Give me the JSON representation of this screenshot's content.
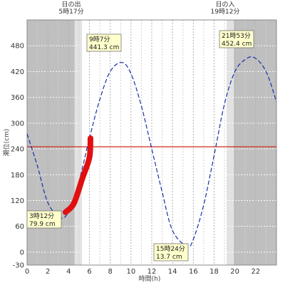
{
  "chart_data": {
    "type": "line",
    "xlabel": "時間(h)",
    "ylabel": "潮位(cm)",
    "xlim": [
      0,
      24
    ],
    "ylim": [
      -30,
      540
    ],
    "x_ticks": [
      0,
      2,
      4,
      6,
      8,
      10,
      12,
      14,
      16,
      18,
      20,
      22
    ],
    "y_ticks": [
      -30,
      0,
      60,
      120,
      180,
      240,
      300,
      360,
      420,
      480
    ],
    "grid": true,
    "sunrise": {
      "label": "日の出",
      "time": "5時17分",
      "hour": 5.283
    },
    "sunset": {
      "label": "日の入",
      "time": "19時12分",
      "hour": 19.2
    },
    "reference_level": 245,
    "extrema": [
      {
        "time": "3時12分",
        "height": "79.9 cm",
        "hour": 3.2,
        "value": 79.9
      },
      {
        "time": "9時7分",
        "height": "441.3 cm",
        "hour": 9.117,
        "value": 441.3
      },
      {
        "time": "15時24分",
        "height": "13.7 cm",
        "hour": 15.4,
        "value": 13.7
      },
      {
        "time": "21時53分",
        "height": "452.4 cm",
        "hour": 21.883,
        "value": 452.4
      }
    ],
    "series": [
      {
        "x": [
          0,
          1,
          2,
          3.2,
          4,
          5,
          6,
          7,
          8,
          9.117,
          10,
          11,
          12,
          13,
          14,
          15.4,
          16,
          17,
          18,
          19,
          20,
          21,
          21.883,
          23,
          24
        ],
        "values": [
          275,
          200,
          115,
          79.9,
          95,
          165,
          265,
          355,
          420,
          441.3,
          415,
          340,
          240,
          140,
          50,
          13.7,
          30,
          110,
          225,
          345,
          420,
          448,
          452.4,
          420,
          350
        ]
      }
    ],
    "highlight": {
      "x": [
        3.7,
        4.5,
        5.3,
        6.0,
        6.1
      ],
      "values": [
        93,
        113,
        170,
        220,
        265
      ]
    }
  },
  "colors": {
    "curve": "#1a2fa8",
    "reference_line": "#d12a1a",
    "highlight": "#e01010",
    "night": "#bfbfbf",
    "twilight": "#e2e2e2",
    "label_box": "#ffffcc"
  }
}
